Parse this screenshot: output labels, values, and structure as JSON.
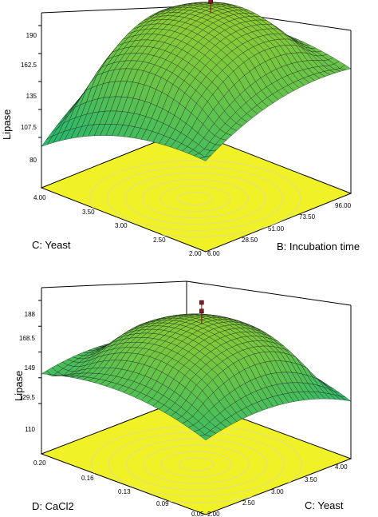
{
  "chart_data": [
    {
      "type": "surface3d",
      "zlabel": "Lipase",
      "xlabel": "C: Yeast",
      "ylabel": "B: Incubation time",
      "z_ticks": [
        "80",
        "107.5",
        "135",
        "162.5",
        "190"
      ],
      "x_ticks": [
        "2.00",
        "2.50",
        "3.00",
        "3.50",
        "4.00"
      ],
      "y_ticks": [
        "6.00",
        "28.50",
        "51.00",
        "73.50",
        "96.00"
      ],
      "zlim": [
        80,
        190
      ],
      "xlim": [
        2.0,
        4.0
      ],
      "ylim": [
        6.0,
        96.0
      ],
      "surface": {
        "corner_values": {
          "x_min_y_min": 66,
          "x_max_y_min": 118,
          "x_max_y_max": 142,
          "x_min_y_max": 128
        },
        "peak": {
          "x": 3.0,
          "y": 60.0,
          "z": 186
        },
        "design_points_z": [
          188,
          183
        ]
      },
      "colors": {
        "surface_low": "#2db86a",
        "surface_high": "#9ecf2a",
        "floor": "#f1f127",
        "contour": "#e0e08a",
        "points": "#8b1a1a"
      }
    },
    {
      "type": "surface3d",
      "zlabel": "Lipase",
      "xlabel": "D: CaCl2",
      "ylabel": "C: Yeast",
      "z_ticks": [
        "110",
        "129.5",
        "149",
        "168.5",
        "188"
      ],
      "x_ticks": [
        "0.05",
        "0.09",
        "0.13",
        "0.16",
        "0.20"
      ],
      "y_ticks": [
        "2.00",
        "2.50",
        "3.00",
        "3.50",
        "4.00"
      ],
      "zlim": [
        110,
        188
      ],
      "xlim": [
        0.05,
        0.2
      ],
      "ylim": [
        2.0,
        4.0
      ],
      "surface": {
        "corner_values": {
          "x_min_y_min": 140,
          "x_max_y_min": 130,
          "x_max_y_max": 112,
          "x_min_y_max": 116
        },
        "peak": {
          "x": 0.13,
          "y": 3.0,
          "z": 183
        },
        "design_points_z": [
          188,
          181
        ]
      },
      "colors": {
        "surface_low": "#2db86a",
        "surface_high": "#9ecf2a",
        "floor": "#f1f127",
        "contour": "#e0e08a",
        "points": "#8b1a1a"
      }
    }
  ]
}
